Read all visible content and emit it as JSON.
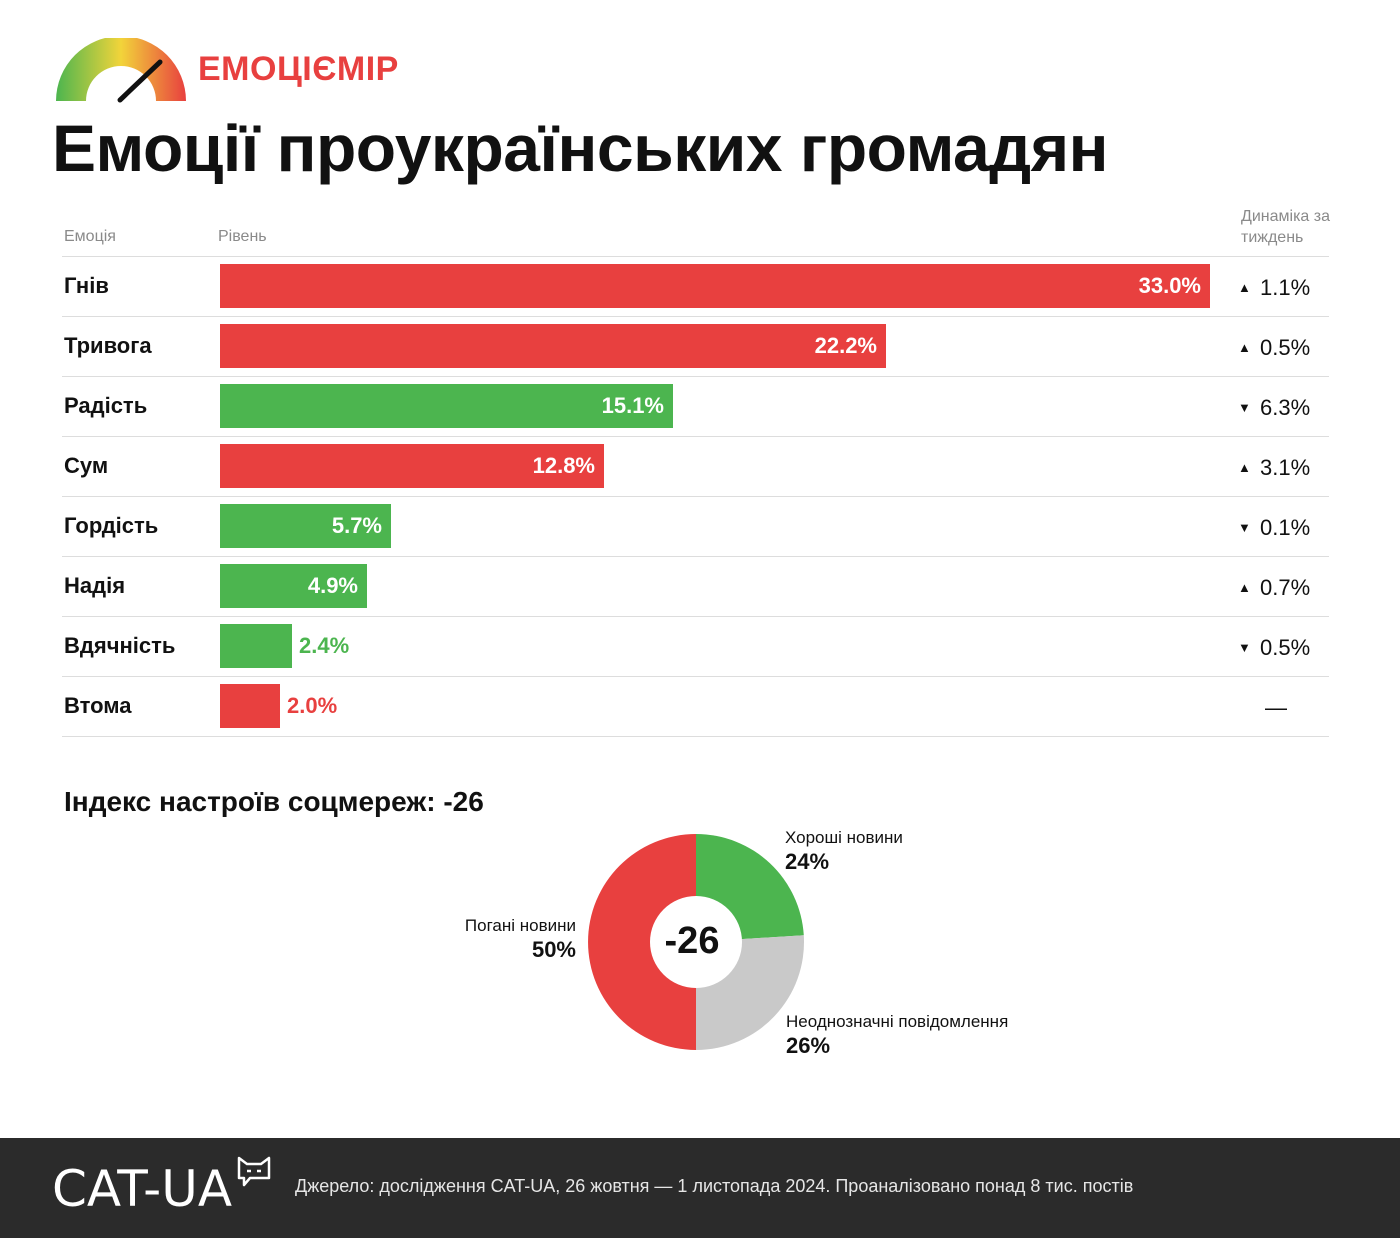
{
  "brand": {
    "name": "ЕМОЦІЄМІР"
  },
  "title": "Емоції проукраїнських громадян",
  "columns": {
    "emotion": "Емоція",
    "level": "Рівень",
    "dynamics": "Динаміка за тиждень"
  },
  "colors": {
    "negative": "#e8403f",
    "positive": "#4cb54f",
    "neutral": "#c9c9c9",
    "footer": "#2b2b2b"
  },
  "chart_data": [
    {
      "type": "bar",
      "orientation": "horizontal",
      "categories": [
        "Гнів",
        "Тривога",
        "Радість",
        "Сум",
        "Гордість",
        "Надія",
        "Вдячність",
        "Втома"
      ],
      "values": [
        33.0,
        22.2,
        15.1,
        12.8,
        5.7,
        4.9,
        2.4,
        2.0
      ],
      "value_labels": [
        "33.0%",
        "22.2%",
        "15.1%",
        "12.8%",
        "5.7%",
        "4.9%",
        "2.4%",
        "2.0%"
      ],
      "sentiment": [
        "negative",
        "negative",
        "positive",
        "negative",
        "positive",
        "positive",
        "positive",
        "negative"
      ],
      "weekly_change": [
        {
          "direction": "up",
          "text": "1.1%"
        },
        {
          "direction": "up",
          "text": "0.5%"
        },
        {
          "direction": "down",
          "text": "6.3%"
        },
        {
          "direction": "up",
          "text": "3.1%"
        },
        {
          "direction": "down",
          "text": "0.1%"
        },
        {
          "direction": "up",
          "text": "0.7%"
        },
        {
          "direction": "down",
          "text": "0.5%"
        },
        {
          "direction": "none",
          "text": "—"
        }
      ],
      "xlim": [
        0,
        33.0
      ]
    },
    {
      "type": "pie",
      "style": "donut",
      "title": "Індекс настроїв соцмереж: -26",
      "center_label": "-26",
      "slices": [
        {
          "name": "Хороші новини",
          "value": 24,
          "label": "24%",
          "color": "#4cb54f"
        },
        {
          "name": "Неоднозначні повідомлення",
          "value": 26,
          "label": "26%",
          "color": "#c9c9c9"
        },
        {
          "name": "Погані новини",
          "value": 50,
          "label": "50%",
          "color": "#e8403f"
        }
      ]
    }
  ],
  "footer": {
    "logo": "CAT-UA",
    "source": "Джерело: дослідження CAT-UA, 26 жовтня — 1 листопада 2024. Проаналізовано понад 8 тис. постів"
  }
}
